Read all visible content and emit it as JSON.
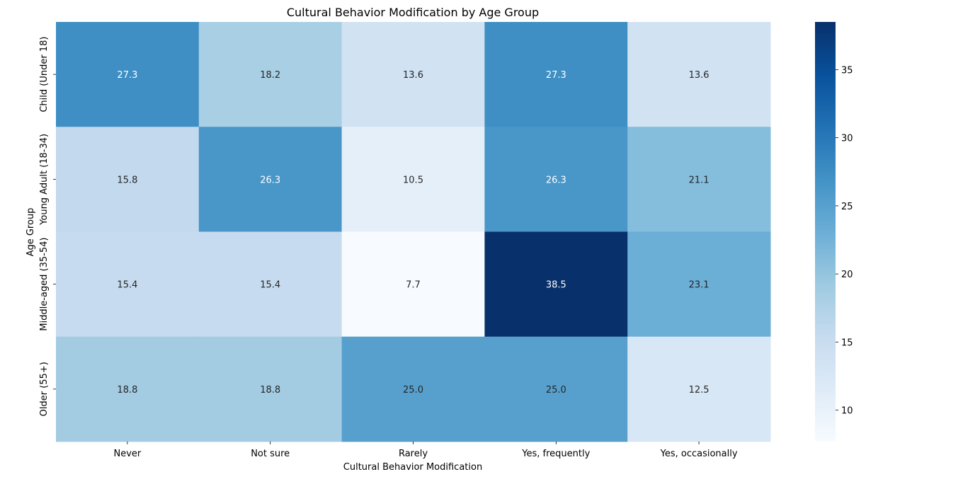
{
  "chart_data": {
    "type": "heatmap",
    "title": "Cultural Behavior Modification by Age Group",
    "xlabel": "Cultural Behavior Modification",
    "ylabel": "Age Group",
    "x_categories": [
      "Never",
      "Not sure",
      "Rarely",
      "Yes, frequently",
      "Yes, occasionally"
    ],
    "y_categories": [
      "Child (Under 18)",
      "Young Adult (18-34)",
      "Middle-aged (35-54)",
      "Older (55+)"
    ],
    "values": [
      [
        27.3,
        18.2,
        13.6,
        27.3,
        13.6
      ],
      [
        15.8,
        26.3,
        10.5,
        26.3,
        21.1
      ],
      [
        15.4,
        15.4,
        7.7,
        38.5,
        23.1
      ],
      [
        18.8,
        18.8,
        25.0,
        25.0,
        12.5
      ]
    ],
    "colormap": "Blues",
    "colorbar": {
      "range": [
        7.7,
        38.5
      ],
      "ticks": [
        10,
        15,
        20,
        25,
        30,
        35
      ]
    }
  }
}
